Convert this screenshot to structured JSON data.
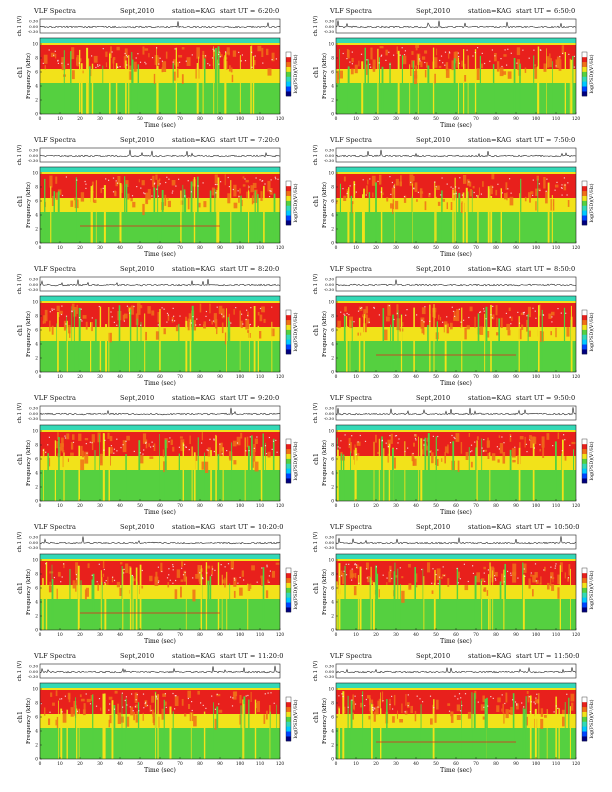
{
  "panel_header": {
    "title": "VLF Spectra",
    "date": "Sept,2010",
    "station": "station=KAG",
    "start_prefix": "start UT ="
  },
  "axes": {
    "ch1_label": "ch.1 (V)",
    "channel_label": "ch1",
    "freq_label": "Frequency (kHz)",
    "time_label": "Time (sec)",
    "cbar_label": "log(PSD)(V²/Hz)",
    "ch1_ticks": [
      "0.30",
      "0.00",
      "-0.30"
    ],
    "freq_ticks": [
      "0",
      "2",
      "4",
      "6",
      "8",
      "10"
    ],
    "time_ticks": [
      "0",
      "10",
      "20",
      "30",
      "40",
      "50",
      "60",
      "70",
      "80",
      "90",
      "100",
      "110",
      "120"
    ]
  },
  "panels": [
    {
      "start_ut": "6:20:0"
    },
    {
      "start_ut": "6:50:0"
    },
    {
      "start_ut": "7:20:0"
    },
    {
      "start_ut": "7:50:0"
    },
    {
      "start_ut": "8:20:0"
    },
    {
      "start_ut": "8:50:0"
    },
    {
      "start_ut": "9:20:0"
    },
    {
      "start_ut": "9:50:0"
    },
    {
      "start_ut": "10:20:0"
    },
    {
      "start_ut": "10:50:0"
    },
    {
      "start_ut": "11:20:0"
    },
    {
      "start_ut": "11:50:0"
    }
  ],
  "colors": {
    "intense": "#e8201c",
    "high": "#f07018",
    "mid": "#f2e21a",
    "low": "#55d040",
    "base": "#33d9b6",
    "cbar": [
      "#000080",
      "#0044ff",
      "#00c8ff",
      "#33d9b6",
      "#55d040",
      "#f2e21a",
      "#f07018",
      "#e8201c",
      "#ffffff"
    ]
  }
}
